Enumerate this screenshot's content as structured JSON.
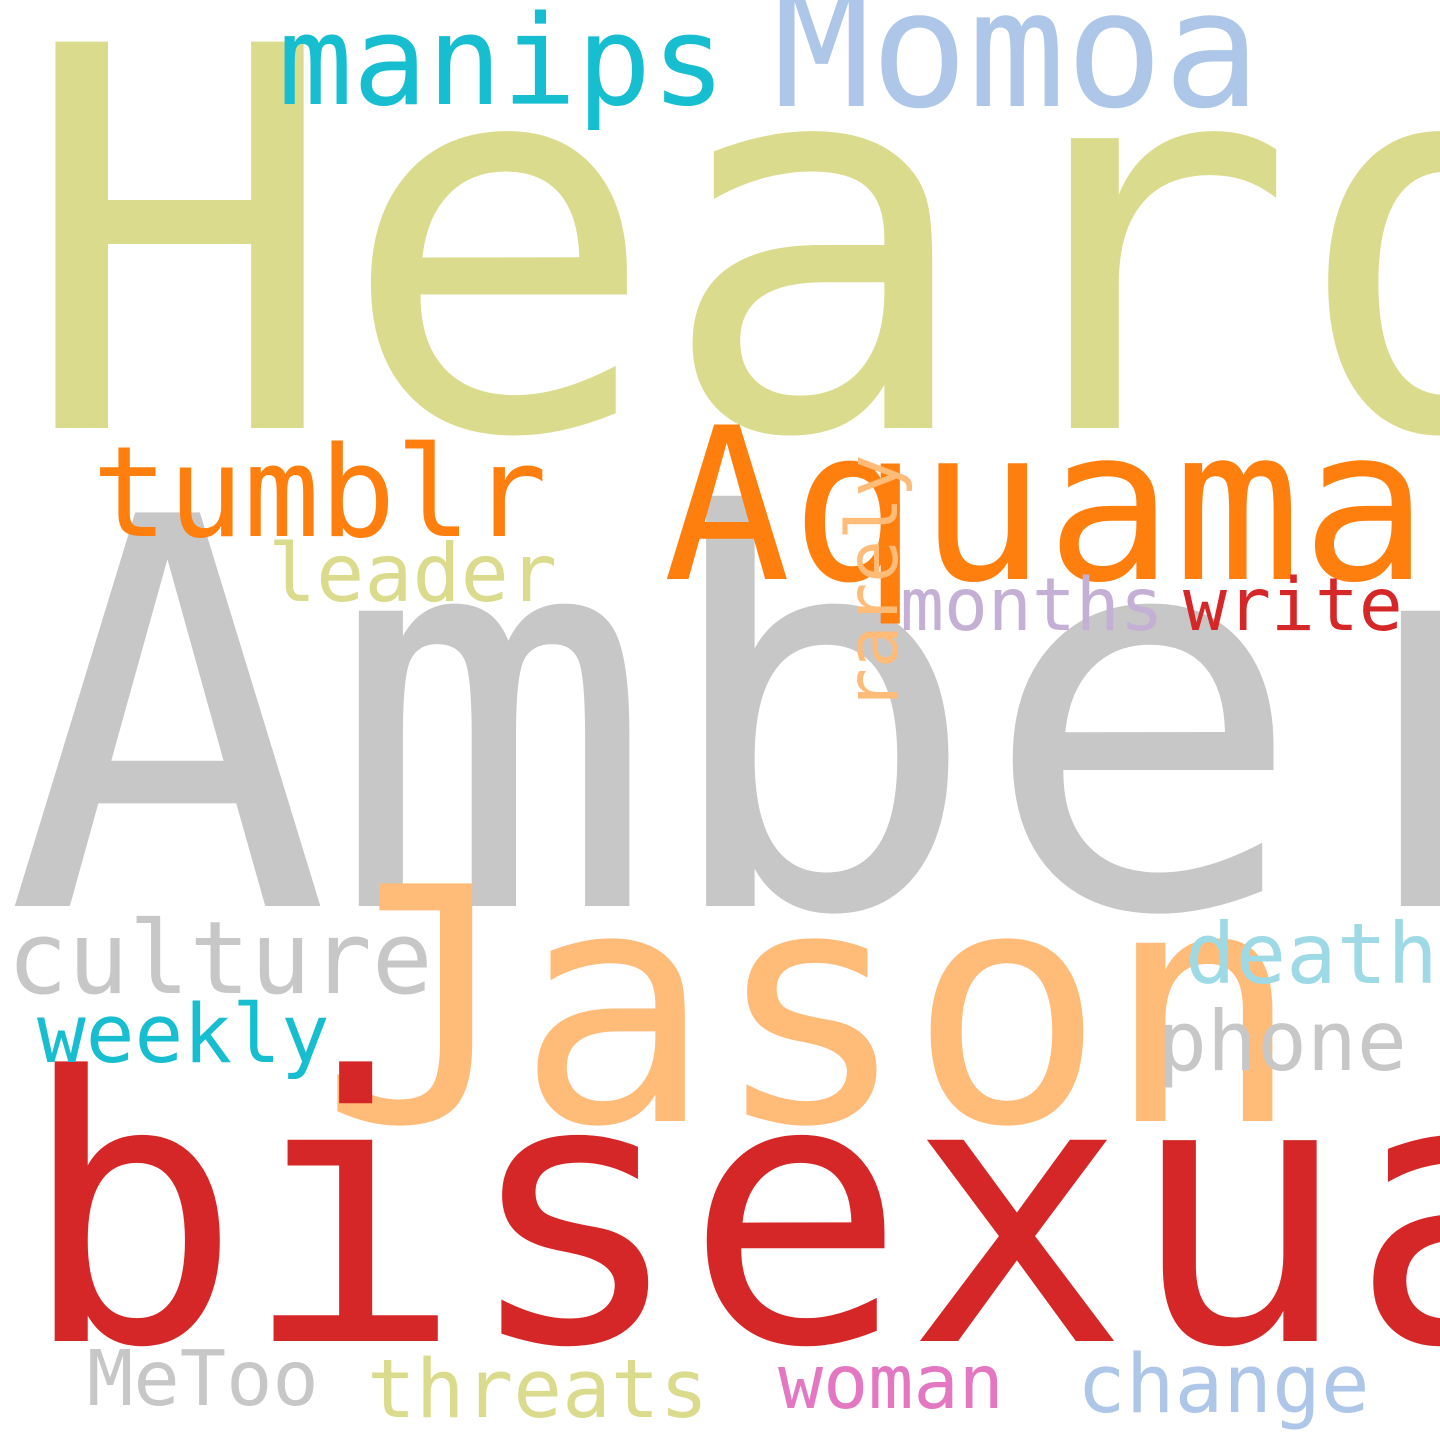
{
  "words": {
    "heard": {
      "text": "Heard",
      "color": "#dbdb8d"
    },
    "amber": {
      "text": "Amber",
      "color": "#c7c7c7"
    },
    "bisexual": {
      "text": "bisexual",
      "color": "#d62728"
    },
    "jason": {
      "text": "Jason",
      "color": "#ffbb78"
    },
    "aquaman": {
      "text": "Aquaman",
      "color": "#ff7f0e"
    },
    "momoa": {
      "text": "Momoa",
      "color": "#aec7e8"
    },
    "manips": {
      "text": "manips",
      "color": "#17becf"
    },
    "tumblr": {
      "text": "tumblr",
      "color": "#ff7f0e"
    },
    "rarely": {
      "text": "rarely",
      "color": "#ffbb78"
    },
    "leader": {
      "text": "leader",
      "color": "#dbdb8d"
    },
    "months": {
      "text": "months",
      "color": "#c5b0d5"
    },
    "write": {
      "text": "write",
      "color": "#d62728"
    },
    "culture": {
      "text": "culture",
      "color": "#c7c7c7"
    },
    "death": {
      "text": "death",
      "color": "#9edae5"
    },
    "weekly": {
      "text": "weekly",
      "color": "#17becf"
    },
    "phone": {
      "text": "phone",
      "color": "#c7c7c7"
    },
    "metoo": {
      "text": "MeToo",
      "color": "#c7c7c7"
    },
    "threats": {
      "text": "threats",
      "color": "#dbdb8d"
    },
    "woman": {
      "text": "woman",
      "color": "#e377c2"
    },
    "change": {
      "text": "change",
      "color": "#aec7e8"
    }
  }
}
